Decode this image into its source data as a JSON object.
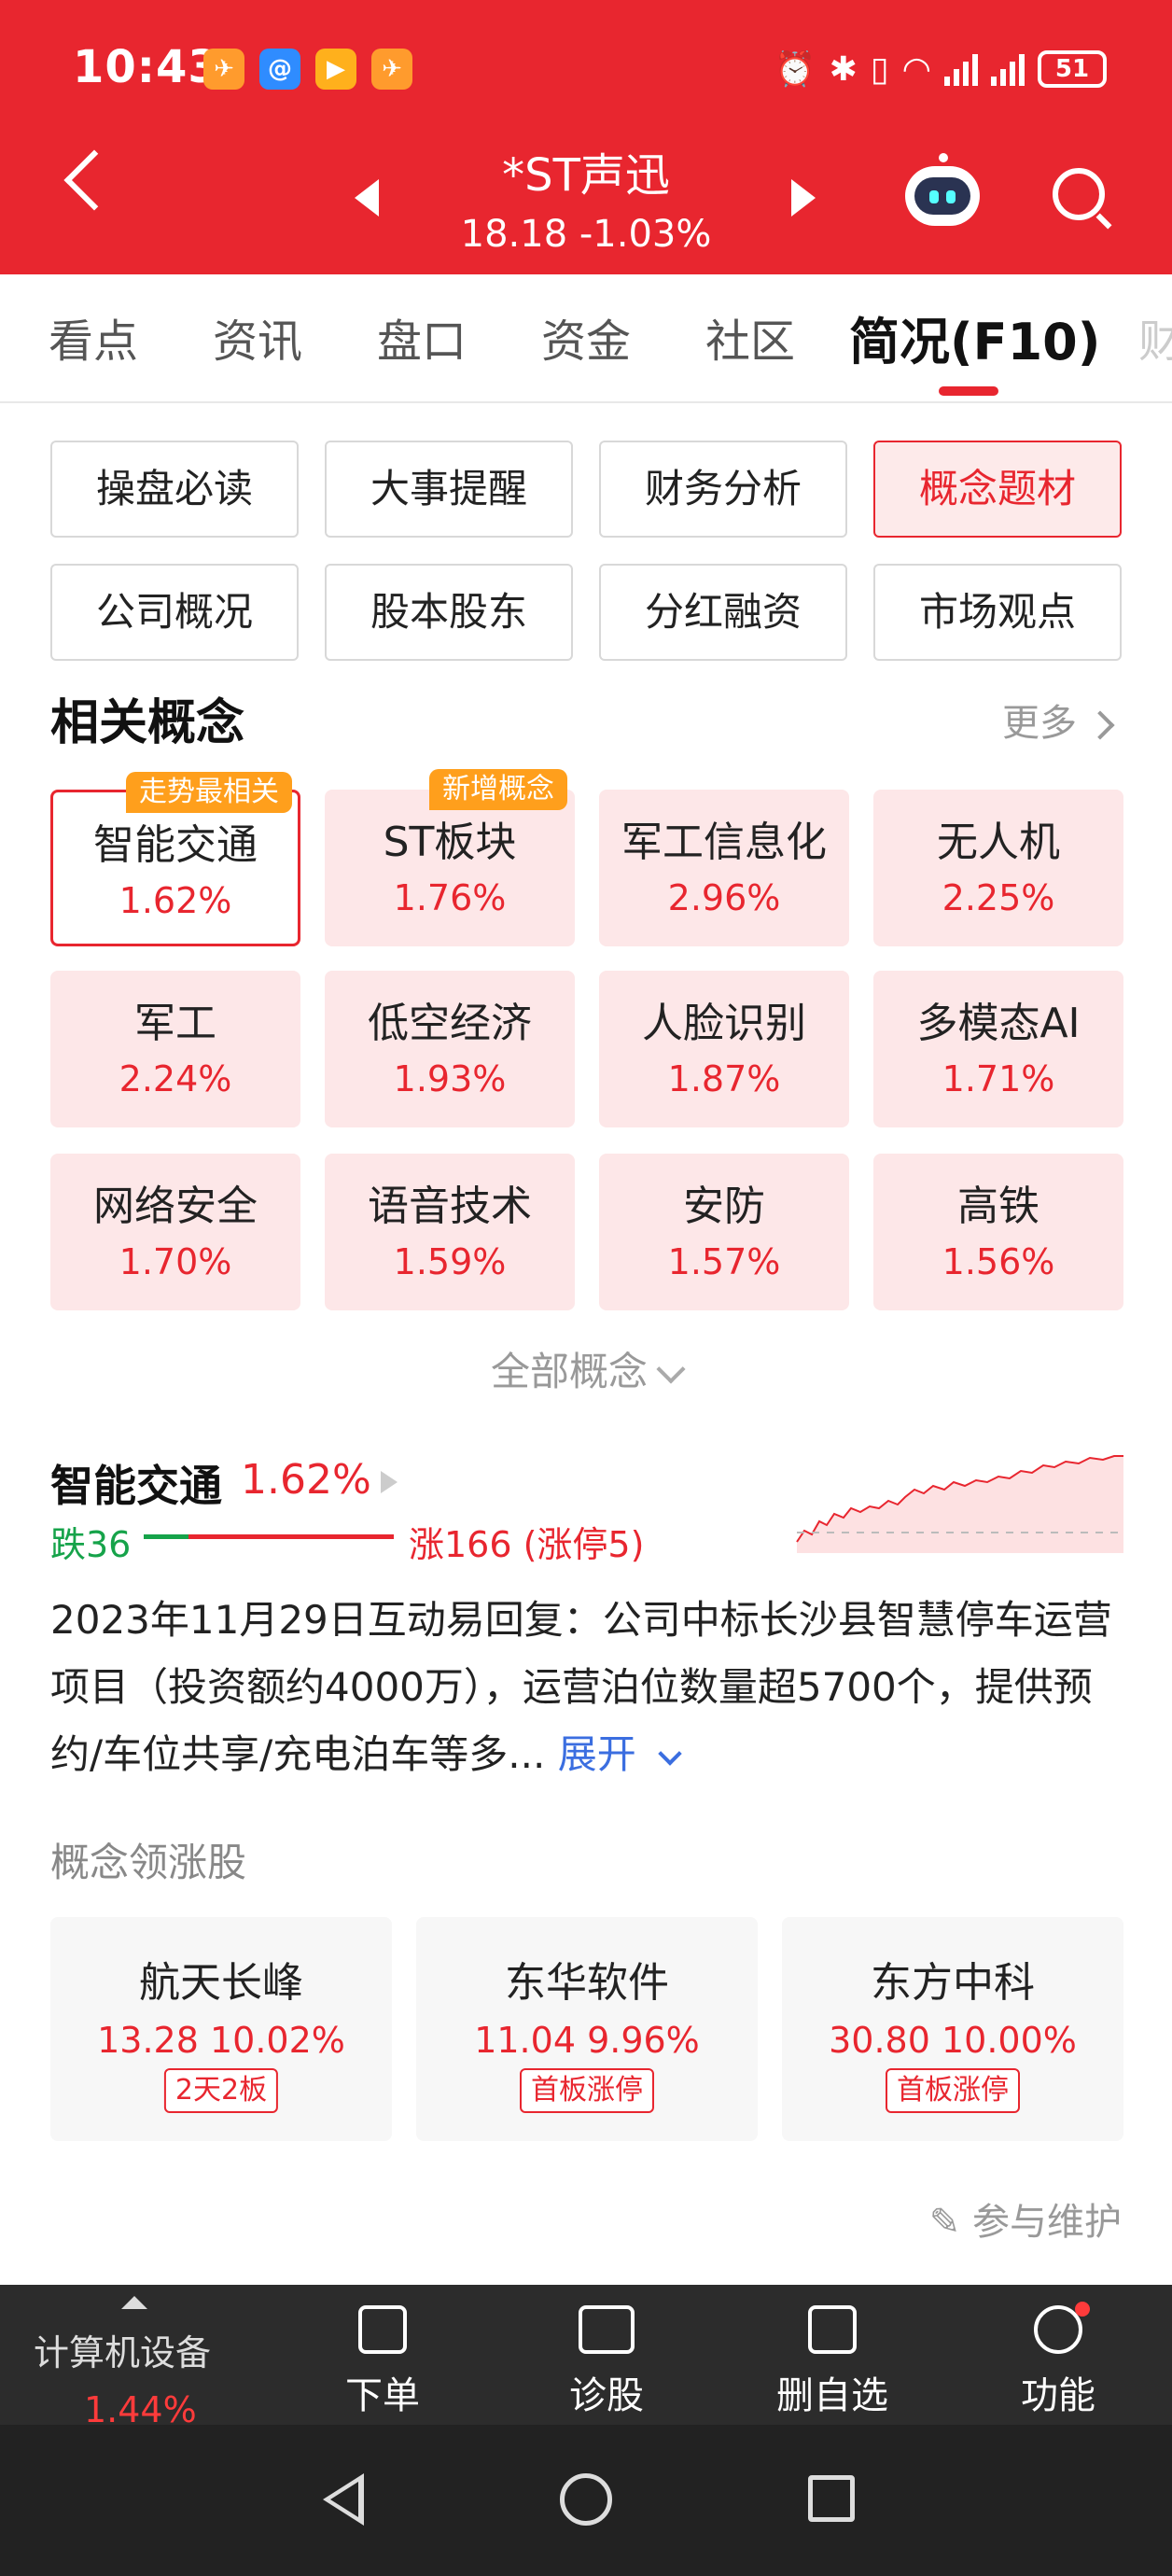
{
  "status_bar": {
    "time": "10:43",
    "battery": "51",
    "app_icons": [
      "app-notify-icon",
      "app-chat-icon",
      "app-video-icon",
      "app-notify-icon"
    ]
  },
  "header": {
    "stock_name": "*ST声迅",
    "stock_price": "18.18 -1.03%",
    "back_icon": "chevron-left-icon",
    "robot_icon": "robot-assistant-icon",
    "search_icon": "search-icon"
  },
  "tabs": [
    "看点",
    "资讯",
    "盘口",
    "资金",
    "社区",
    "简况(F10)",
    "财"
  ],
  "active_tab": 5,
  "sub_buttons": [
    "操盘必读",
    "大事提醒",
    "财务分析",
    "概念题材",
    "公司概况",
    "股本股东",
    "分红融资",
    "市场观点"
  ],
  "active_sub_button": 3,
  "concepts_section": {
    "title": "相关概念",
    "more": "更多",
    "all_concepts": "全部概念",
    "items": [
      {
        "name": "智能交通",
        "pct": "1.62%",
        "badge": "走势最相关"
      },
      {
        "name": "ST板块",
        "pct": "1.76%",
        "badge": "新增概念"
      },
      {
        "name": "军工信息化",
        "pct": "2.96%",
        "badge": ""
      },
      {
        "name": "无人机",
        "pct": "2.25%",
        "badge": ""
      },
      {
        "name": "军工",
        "pct": "2.24%",
        "badge": ""
      },
      {
        "name": "低空经济",
        "pct": "1.93%",
        "badge": ""
      },
      {
        "name": "人脸识别",
        "pct": "1.87%",
        "badge": ""
      },
      {
        "name": "多模态AI",
        "pct": "1.71%",
        "badge": ""
      },
      {
        "name": "网络安全",
        "pct": "1.70%",
        "badge": ""
      },
      {
        "name": "语音技术",
        "pct": "1.59%",
        "badge": ""
      },
      {
        "name": "安防",
        "pct": "1.57%",
        "badge": ""
      },
      {
        "name": "高铁",
        "pct": "1.56%",
        "badge": ""
      }
    ]
  },
  "concept_detail": {
    "name": "智能交通",
    "pct": "1.62%",
    "down": "跌36",
    "up": "涨166 (涨停5)",
    "down_count": 36,
    "up_count": 166,
    "description": "2023年11月29日互动易回复：公司中标长沙县智慧停车运营项目（投资额约4000万），运营泊位数量超5700个，提供预约/车位共享/充电泊车等多...",
    "expand": "展开"
  },
  "leaders": {
    "title": "概念领涨股",
    "items": [
      {
        "name": "航天长峰",
        "value": "13.28 10.02%",
        "tag": "2天2板"
      },
      {
        "name": "东华软件",
        "value": "11.04 9.96%",
        "tag": "首板涨停"
      },
      {
        "name": "东方中科",
        "value": "30.80 10.00%",
        "tag": "首板涨停"
      }
    ]
  },
  "maintain": "参与维护",
  "toolbar": {
    "sector": "计算机设备",
    "sector_pct": "1.44%",
    "items": [
      {
        "label": "下单",
        "icon": "order-icon"
      },
      {
        "label": "诊股",
        "icon": "diagnose-icon"
      },
      {
        "label": "删自选",
        "icon": "remove-watchlist-icon"
      },
      {
        "label": "功能",
        "icon": "menu-icon"
      }
    ]
  },
  "colors": {
    "brand_red": "#e8262f",
    "badge_orange": "#ff9f1c",
    "down_green": "#16a34a",
    "link_blue": "#3b6ee0"
  }
}
